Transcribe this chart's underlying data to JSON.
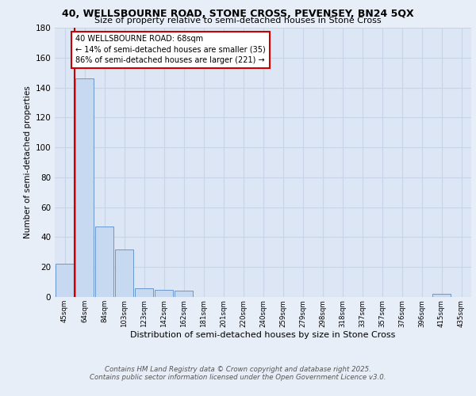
{
  "title_line1": "40, WELLSBOURNE ROAD, STONE CROSS, PEVENSEY, BN24 5QX",
  "title_line2": "Size of property relative to semi-detached houses in Stone Cross",
  "xlabel": "Distribution of semi-detached houses by size in Stone Cross",
  "ylabel": "Number of semi-detached properties",
  "categories": [
    "45sqm",
    "64sqm",
    "84sqm",
    "103sqm",
    "123sqm",
    "142sqm",
    "162sqm",
    "181sqm",
    "201sqm",
    "220sqm",
    "240sqm",
    "259sqm",
    "279sqm",
    "298sqm",
    "318sqm",
    "337sqm",
    "357sqm",
    "376sqm",
    "396sqm",
    "415sqm",
    "435sqm"
  ],
  "values": [
    22,
    146,
    47,
    32,
    6,
    5,
    4,
    0,
    0,
    0,
    0,
    0,
    0,
    0,
    0,
    0,
    0,
    0,
    0,
    2,
    0
  ],
  "bar_color": "#c6d9f0",
  "bar_edge_color": "#5b8cc8",
  "red_line_color": "#cc0000",
  "annotation_text": "40 WELLSBOURNE ROAD: 68sqm\n← 14% of semi-detached houses are smaller (35)\n86% of semi-detached houses are larger (221) →",
  "annotation_box_color": "#cc0000",
  "ylim": [
    0,
    180
  ],
  "yticks": [
    0,
    20,
    40,
    60,
    80,
    100,
    120,
    140,
    160,
    180
  ],
  "grid_color": "#c8d4e8",
  "background_color": "#dce6f5",
  "fig_background": "#e8eef8",
  "footer_line1": "Contains HM Land Registry data © Crown copyright and database right 2025.",
  "footer_line2": "Contains public sector information licensed under the Open Government Licence v3.0."
}
